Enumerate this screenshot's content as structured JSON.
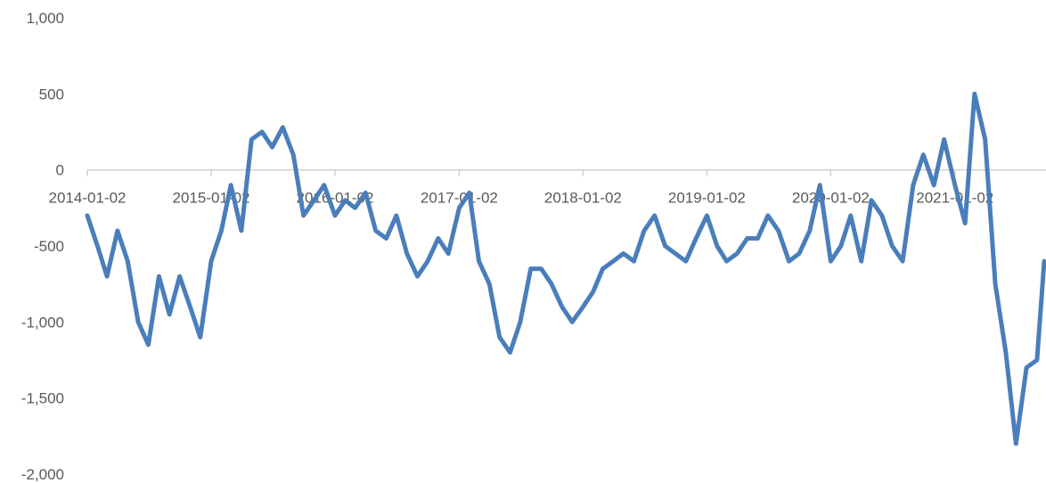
{
  "chart_data": {
    "type": "line",
    "title": "",
    "xlabel": "",
    "ylabel": "",
    "x_tick_labels": [
      "2014-01-02",
      "2015-01-02",
      "2016-01-02",
      "2017-01-02",
      "2018-01-02",
      "2019-01-02",
      "2020-01-02",
      "2021-01-02"
    ],
    "y_tick_labels": [
      "1,000",
      "500",
      "0",
      "-500",
      "-1,000",
      "-1,500",
      "-2,000"
    ],
    "y_ticks": [
      1000,
      500,
      0,
      -500,
      -1000,
      -1500,
      -2000
    ],
    "ylim": [
      -2000,
      1000
    ],
    "xlim": [
      "2014-01-02",
      "2021-10-01"
    ],
    "grid": false,
    "legend": "none",
    "line_color": "#4A7EBB",
    "series": [
      {
        "x": [
          "2014-01-02",
          "2014-02-01",
          "2014-03-01",
          "2014-04-01",
          "2014-05-01",
          "2014-06-01",
          "2014-07-01",
          "2014-08-01",
          "2014-09-01",
          "2014-10-01",
          "2014-11-01",
          "2014-12-01",
          "2015-01-02",
          "2015-02-01",
          "2015-03-01",
          "2015-04-01",
          "2015-05-01",
          "2015-06-01",
          "2015-07-01",
          "2015-08-01",
          "2015-09-01",
          "2015-10-01",
          "2015-11-01",
          "2015-12-01",
          "2016-01-02",
          "2016-02-01",
          "2016-03-01",
          "2016-04-01",
          "2016-05-01",
          "2016-06-01",
          "2016-07-01",
          "2016-08-01",
          "2016-09-01",
          "2016-10-01",
          "2016-11-01",
          "2016-12-01",
          "2017-01-02",
          "2017-02-01",
          "2017-03-01",
          "2017-04-01",
          "2017-05-01",
          "2017-06-01",
          "2017-07-01",
          "2017-08-01",
          "2017-09-01",
          "2017-10-01",
          "2017-11-01",
          "2017-12-01",
          "2018-01-02",
          "2018-02-01",
          "2018-03-01",
          "2018-04-01",
          "2018-05-01",
          "2018-06-01",
          "2018-07-01",
          "2018-08-01",
          "2018-09-01",
          "2018-10-01",
          "2018-11-01",
          "2018-12-01",
          "2019-01-02",
          "2019-02-01",
          "2019-03-01",
          "2019-04-01",
          "2019-05-01",
          "2019-06-01",
          "2019-07-01",
          "2019-08-01",
          "2019-09-01",
          "2019-10-01",
          "2019-11-01",
          "2019-12-01",
          "2020-01-02",
          "2020-02-01",
          "2020-03-01",
          "2020-04-01",
          "2020-05-01",
          "2020-06-01",
          "2020-07-01",
          "2020-08-01",
          "2020-09-01",
          "2020-10-01",
          "2020-11-01",
          "2020-12-01",
          "2021-01-02",
          "2021-02-01",
          "2021-03-01",
          "2021-04-01",
          "2021-05-01",
          "2021-06-01",
          "2021-07-01",
          "2021-08-01",
          "2021-09-01",
          "2021-10-01"
        ],
        "y": [
          -300,
          -500,
          -700,
          -400,
          -600,
          -1000,
          -1150,
          -700,
          -950,
          -700,
          -900,
          -1100,
          -600,
          -400,
          -100,
          -400,
          200,
          250,
          150,
          280,
          100,
          -300,
          -200,
          -100,
          -300,
          -200,
          -250,
          -150,
          -400,
          -450,
          -300,
          -550,
          -700,
          -600,
          -450,
          -550,
          -250,
          -150,
          -600,
          -750,
          -1100,
          -1200,
          -1000,
          -650,
          -650,
          -750,
          -900,
          -1000,
          -900,
          -800,
          -650,
          -600,
          -550,
          -600,
          -400,
          -300,
          -500,
          -550,
          -600,
          -450,
          -300,
          -500,
          -600,
          -550,
          -450,
          -450,
          -300,
          -400,
          -600,
          -550,
          -400,
          -100,
          -600,
          -500,
          -300,
          -600,
          -200,
          -300,
          -500,
          -600,
          -100,
          100,
          -100,
          200,
          -100,
          -350,
          500,
          200,
          -750,
          -1200,
          -1800,
          -1300,
          -1250,
          -600
        ]
      }
    ]
  }
}
